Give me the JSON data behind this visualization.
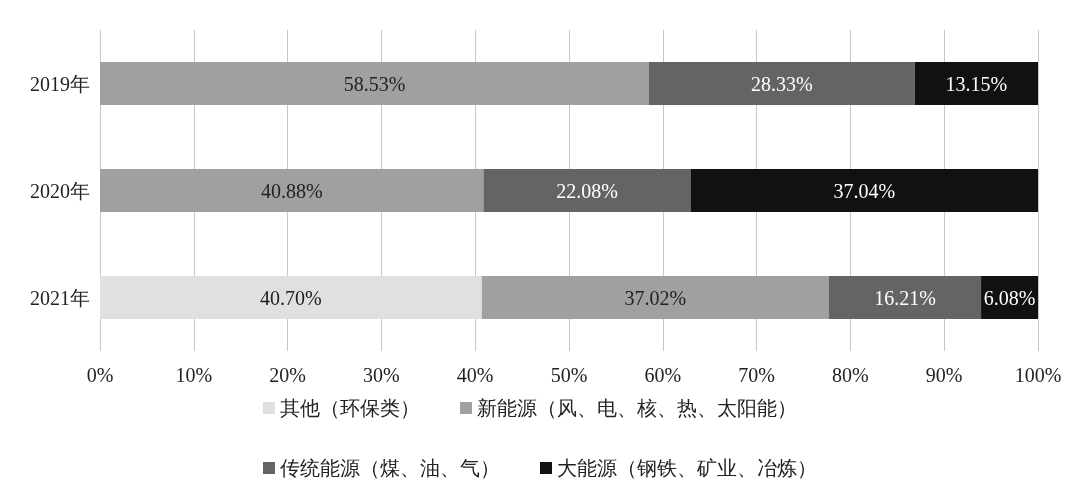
{
  "chart_data": {
    "type": "bar",
    "orientation": "horizontal",
    "stacked": true,
    "categories": [
      "2019年",
      "2020年",
      "2021年"
    ],
    "series": [
      {
        "name": "其他（环保类）",
        "color": "#e0e0e0",
        "values": [
          null,
          null,
          40.7
        ],
        "value_labels": [
          null,
          null,
          "40.70%"
        ]
      },
      {
        "name": "新能源（风、电、核、热、太阳能）",
        "color": "#a0a0a0",
        "values": [
          58.53,
          40.88,
          37.02
        ],
        "value_labels": [
          "58.53%",
          "40.88%",
          "37.02%"
        ]
      },
      {
        "name": "传统能源（煤、油、气）",
        "color": "#646464",
        "values": [
          28.33,
          22.08,
          16.21
        ],
        "value_labels": [
          "28.33%",
          "22.08%",
          "16.21%"
        ]
      },
      {
        "name": "大能源（钢铁、矿业、冶炼）",
        "color": "#111111",
        "values": [
          13.15,
          37.04,
          6.08
        ],
        "value_labels": [
          "13.15%",
          "37.04%",
          "6.08%"
        ]
      }
    ],
    "xlim": [
      0,
      100
    ],
    "xticks": [
      {
        "value": 0,
        "label": "0%"
      },
      {
        "value": 10,
        "label": "10%"
      },
      {
        "value": 20,
        "label": "20%"
      },
      {
        "value": 30,
        "label": "30%"
      },
      {
        "value": 40,
        "label": "40%"
      },
      {
        "value": 50,
        "label": "50%"
      },
      {
        "value": 60,
        "label": "60%"
      },
      {
        "value": 70,
        "label": "70%"
      },
      {
        "value": 80,
        "label": "80%"
      },
      {
        "value": 90,
        "label": "90%"
      },
      {
        "value": 100,
        "label": "100%"
      }
    ],
    "grid": "x",
    "legend": "bottom"
  }
}
